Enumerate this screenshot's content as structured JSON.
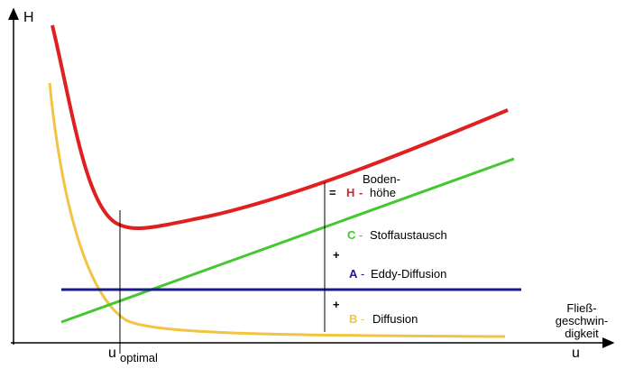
{
  "axes": {
    "y_label": "H",
    "x_label": "u",
    "x_description": [
      "Fließ-",
      "geschwin-",
      "digkeit"
    ]
  },
  "optimum": {
    "symbol": "u",
    "subscript": "optimal"
  },
  "equation": {
    "equals": "=",
    "plus": "+",
    "terms": [
      {
        "letter": "H",
        "separator": "-",
        "text": [
          "Boden-",
          "höhe"
        ]
      },
      {
        "letter": "C",
        "separator": "-",
        "text": [
          "Stoffaustausch"
        ]
      },
      {
        "letter": "A",
        "separator": "-",
        "text": [
          "Eddy-Diffusion"
        ]
      },
      {
        "letter": "B",
        "separator": "-",
        "text": [
          "Diffusion"
        ]
      }
    ]
  }
}
